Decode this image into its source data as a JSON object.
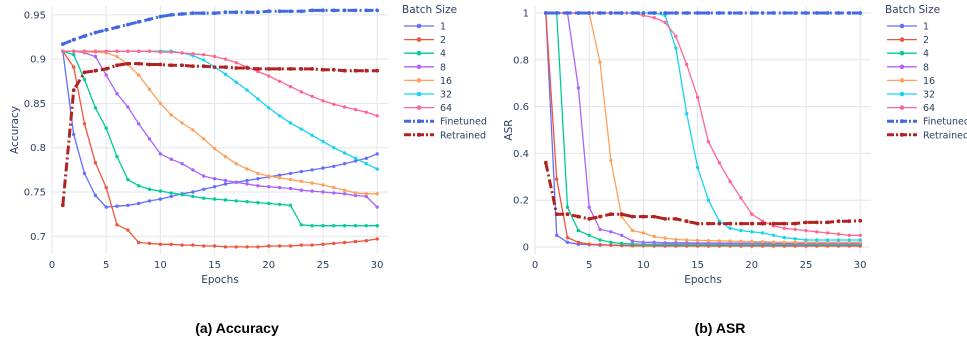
{
  "chart_data": [
    {
      "type": "line",
      "caption": "(a) Accuracy",
      "xlabel": "Epochs",
      "ylabel": "Accuracy",
      "xlim": [
        0,
        31
      ],
      "ylim": [
        0.68,
        0.96
      ],
      "xticks": [
        0,
        5,
        10,
        15,
        20,
        25,
        30
      ],
      "yticks": [
        0.7,
        0.75,
        0.8,
        0.85,
        0.9,
        0.95
      ],
      "yticklabels": [
        "0.7",
        "0.75",
        "0.8",
        "0.85",
        "0.9",
        "0.95"
      ],
      "grid": true,
      "legend_title": "Batch Size",
      "legend_position": "right",
      "x": [
        1,
        2,
        3,
        4,
        5,
        6,
        7,
        8,
        9,
        10,
        11,
        12,
        13,
        14,
        15,
        16,
        17,
        18,
        19,
        20,
        21,
        22,
        23,
        24,
        25,
        26,
        27,
        28,
        29,
        30
      ],
      "series": [
        {
          "name": "1",
          "color": "#636efa",
          "style": "solid",
          "values": [
            0.909,
            0.815,
            0.771,
            0.746,
            0.733,
            0.734,
            0.735,
            0.737,
            0.74,
            0.742,
            0.745,
            0.748,
            0.75,
            0.753,
            0.756,
            0.759,
            0.761,
            0.763,
            0.765,
            0.767,
            0.769,
            0.771,
            0.773,
            0.775,
            0.777,
            0.779,
            0.782,
            0.785,
            0.788,
            0.793
          ]
        },
        {
          "name": "2",
          "color": "#ef553b",
          "style": "solid",
          "values": [
            0.909,
            0.891,
            0.827,
            0.783,
            0.755,
            0.713,
            0.707,
            0.693,
            0.692,
            0.691,
            0.691,
            0.69,
            0.69,
            0.689,
            0.689,
            0.688,
            0.688,
            0.688,
            0.688,
            0.689,
            0.689,
            0.689,
            0.69,
            0.69,
            0.691,
            0.692,
            0.693,
            0.694,
            0.695,
            0.697
          ]
        },
        {
          "name": "4",
          "color": "#00cc96",
          "style": "solid",
          "values": [
            0.909,
            0.905,
            0.877,
            0.845,
            0.822,
            0.79,
            0.764,
            0.757,
            0.753,
            0.751,
            0.749,
            0.747,
            0.745,
            0.743,
            0.742,
            0.741,
            0.74,
            0.739,
            0.738,
            0.737,
            0.736,
            0.735,
            0.713,
            0.712,
            0.712,
            0.712,
            0.712,
            0.712,
            0.712,
            0.712
          ]
        },
        {
          "name": "8",
          "color": "#ab63fa",
          "style": "solid",
          "values": [
            0.909,
            0.909,
            0.907,
            0.903,
            0.882,
            0.861,
            0.846,
            0.827,
            0.81,
            0.793,
            0.787,
            0.782,
            0.775,
            0.768,
            0.765,
            0.763,
            0.761,
            0.759,
            0.757,
            0.756,
            0.755,
            0.754,
            0.752,
            0.751,
            0.75,
            0.749,
            0.748,
            0.746,
            0.745,
            0.733
          ]
        },
        {
          "name": "16",
          "color": "#ffa15a",
          "style": "solid",
          "values": [
            0.909,
            0.909,
            0.908,
            0.908,
            0.907,
            0.903,
            0.894,
            0.882,
            0.866,
            0.85,
            0.837,
            0.828,
            0.82,
            0.81,
            0.799,
            0.79,
            0.782,
            0.776,
            0.771,
            0.768,
            0.766,
            0.764,
            0.762,
            0.76,
            0.758,
            0.755,
            0.752,
            0.749,
            0.748,
            0.748
          ]
        },
        {
          "name": "32",
          "color": "#19d3f3",
          "style": "solid",
          "values": [
            0.909,
            0.909,
            0.909,
            0.909,
            0.909,
            0.909,
            0.909,
            0.909,
            0.909,
            0.909,
            0.909,
            0.907,
            0.904,
            0.899,
            0.891,
            0.883,
            0.874,
            0.865,
            0.855,
            0.845,
            0.836,
            0.828,
            0.821,
            0.814,
            0.807,
            0.8,
            0.794,
            0.788,
            0.782,
            0.776
          ]
        },
        {
          "name": "64",
          "color": "#ff6692",
          "style": "solid",
          "values": [
            0.909,
            0.909,
            0.909,
            0.909,
            0.909,
            0.909,
            0.909,
            0.909,
            0.909,
            0.908,
            0.908,
            0.907,
            0.906,
            0.905,
            0.903,
            0.9,
            0.896,
            0.891,
            0.886,
            0.881,
            0.875,
            0.869,
            0.863,
            0.858,
            0.853,
            0.849,
            0.846,
            0.843,
            0.84,
            0.836
          ]
        },
        {
          "name": "Finetuned",
          "color": "#4169e1",
          "style": "dashdot",
          "values": [
            0.917,
            0.922,
            0.926,
            0.93,
            0.933,
            0.936,
            0.939,
            0.942,
            0.945,
            0.948,
            0.95,
            0.951,
            0.952,
            0.952,
            0.952,
            0.953,
            0.953,
            0.953,
            0.953,
            0.954,
            0.954,
            0.954,
            0.954,
            0.955,
            0.955,
            0.955,
            0.955,
            0.955,
            0.955,
            0.955
          ]
        },
        {
          "name": "Retrained",
          "color": "#b22222",
          "style": "dashdot",
          "values": [
            0.735,
            0.865,
            0.885,
            0.887,
            0.889,
            0.893,
            0.895,
            0.895,
            0.894,
            0.894,
            0.893,
            0.893,
            0.892,
            0.892,
            0.891,
            0.891,
            0.89,
            0.89,
            0.889,
            0.889,
            0.889,
            0.889,
            0.889,
            0.889,
            0.888,
            0.888,
            0.887,
            0.887,
            0.887,
            0.887
          ]
        }
      ]
    },
    {
      "type": "line",
      "caption": "(b) ASR",
      "xlabel": "Epochs",
      "ylabel": "ASR",
      "xlim": [
        0,
        31
      ],
      "ylim": [
        -0.03,
        1.03
      ],
      "xticks": [
        0,
        5,
        10,
        15,
        20,
        25,
        30
      ],
      "yticks": [
        0,
        0.2,
        0.4,
        0.6,
        0.8,
        1
      ],
      "yticklabels": [
        "0",
        "0.2",
        "0.4",
        "0.6",
        "0.8",
        "1"
      ],
      "grid": true,
      "legend_title": "Batch Size",
      "legend_position": "right",
      "x": [
        1,
        2,
        3,
        4,
        5,
        6,
        7,
        8,
        9,
        10,
        11,
        12,
        13,
        14,
        15,
        16,
        17,
        18,
        19,
        20,
        21,
        22,
        23,
        24,
        25,
        26,
        27,
        28,
        29,
        30
      ],
      "series": [
        {
          "name": "1",
          "color": "#636efa",
          "style": "solid",
          "values": [
            1.0,
            0.05,
            0.02,
            0.012,
            0.01,
            0.008,
            0.008,
            0.007,
            0.007,
            0.006,
            0.006,
            0.006,
            0.006,
            0.006,
            0.006,
            0.006,
            0.006,
            0.006,
            0.006,
            0.006,
            0.006,
            0.006,
            0.006,
            0.006,
            0.006,
            0.006,
            0.006,
            0.006,
            0.006,
            0.006
          ]
        },
        {
          "name": "2",
          "color": "#ef553b",
          "style": "solid",
          "values": [
            1.0,
            0.29,
            0.04,
            0.02,
            0.012,
            0.01,
            0.008,
            0.006,
            0.005,
            0.005,
            0.004,
            0.004,
            0.004,
            0.004,
            0.004,
            0.004,
            0.004,
            0.004,
            0.004,
            0.004,
            0.004,
            0.004,
            0.004,
            0.004,
            0.004,
            0.004,
            0.004,
            0.004,
            0.004,
            0.004
          ]
        },
        {
          "name": "4",
          "color": "#00cc96",
          "style": "solid",
          "values": [
            1.0,
            1.0,
            0.17,
            0.07,
            0.05,
            0.03,
            0.02,
            0.015,
            0.013,
            0.012,
            0.012,
            0.012,
            0.012,
            0.012,
            0.012,
            0.012,
            0.012,
            0.012,
            0.012,
            0.012,
            0.012,
            0.012,
            0.012,
            0.012,
            0.012,
            0.012,
            0.012,
            0.012,
            0.012,
            0.012
          ]
        },
        {
          "name": "8",
          "color": "#ab63fa",
          "style": "solid",
          "values": [
            1.0,
            1.0,
            1.0,
            0.68,
            0.17,
            0.075,
            0.065,
            0.05,
            0.025,
            0.02,
            0.02,
            0.018,
            0.018,
            0.018,
            0.017,
            0.017,
            0.017,
            0.017,
            0.017,
            0.017,
            0.017,
            0.017,
            0.016,
            0.016,
            0.016,
            0.016,
            0.016,
            0.016,
            0.016,
            0.016
          ]
        },
        {
          "name": "16",
          "color": "#ffa15a",
          "style": "solid",
          "values": [
            1.0,
            1.0,
            1.0,
            1.0,
            1.0,
            0.79,
            0.37,
            0.13,
            0.07,
            0.06,
            0.045,
            0.038,
            0.032,
            0.03,
            0.028,
            0.027,
            0.026,
            0.025,
            0.024,
            0.023,
            0.022,
            0.021,
            0.02,
            0.02,
            0.02,
            0.02,
            0.02,
            0.02,
            0.02,
            0.02
          ]
        },
        {
          "name": "32",
          "color": "#19d3f3",
          "style": "solid",
          "values": [
            1.0,
            1.0,
            1.0,
            1.0,
            1.0,
            1.0,
            1.0,
            1.0,
            1.0,
            1.0,
            1.0,
            0.99,
            0.85,
            0.57,
            0.34,
            0.2,
            0.11,
            0.08,
            0.07,
            0.065,
            0.06,
            0.05,
            0.04,
            0.035,
            0.03,
            0.03,
            0.03,
            0.03,
            0.03,
            0.03
          ]
        },
        {
          "name": "64",
          "color": "#ff6692",
          "style": "solid",
          "values": [
            1.0,
            1.0,
            1.0,
            1.0,
            1.0,
            1.0,
            1.0,
            1.0,
            1.0,
            0.99,
            0.98,
            0.96,
            0.9,
            0.78,
            0.64,
            0.45,
            0.36,
            0.28,
            0.21,
            0.14,
            0.11,
            0.09,
            0.08,
            0.075,
            0.07,
            0.065,
            0.06,
            0.055,
            0.05,
            0.05
          ]
        },
        {
          "name": "Finetuned",
          "color": "#4169e1",
          "style": "dashdot",
          "values": [
            1.0,
            1.0,
            1.0,
            1.0,
            1.0,
            1.0,
            1.0,
            1.0,
            1.0,
            1.0,
            1.0,
            1.0,
            1.0,
            1.0,
            1.0,
            1.0,
            1.0,
            1.0,
            1.0,
            1.0,
            1.0,
            1.0,
            1.0,
            1.0,
            1.0,
            1.0,
            1.0,
            1.0,
            1.0,
            1.0
          ]
        },
        {
          "name": "Retrained",
          "color": "#b22222",
          "style": "dashdot",
          "values": [
            0.36,
            0.14,
            0.14,
            0.13,
            0.12,
            0.13,
            0.14,
            0.14,
            0.13,
            0.13,
            0.13,
            0.12,
            0.12,
            0.11,
            0.1,
            0.1,
            0.1,
            0.1,
            0.1,
            0.1,
            0.1,
            0.1,
            0.1,
            0.1,
            0.105,
            0.105,
            0.105,
            0.11,
            0.11,
            0.112
          ]
        }
      ]
    }
  ]
}
